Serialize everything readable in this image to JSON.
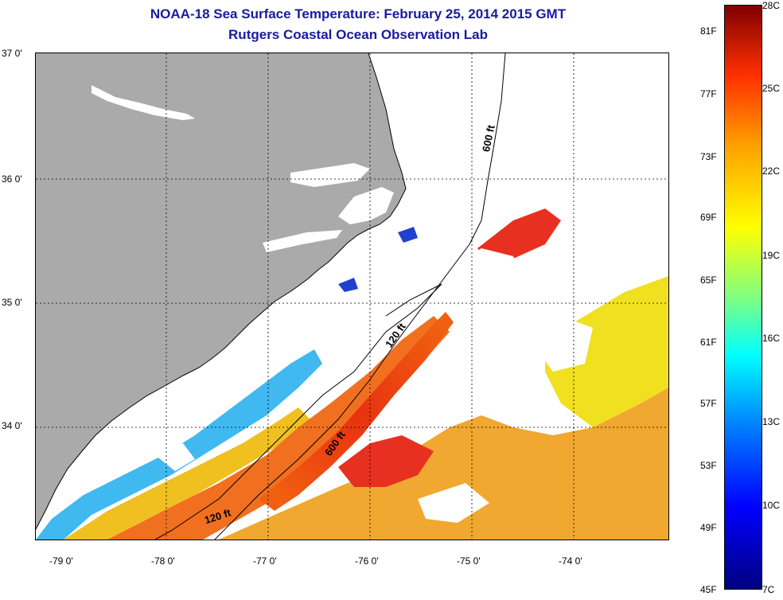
{
  "title": {
    "line1": "NOAA-18 Sea Surface Temperature:  February 25, 2014 2015 GMT",
    "line2": "Rutgers Coastal Ocean Observation Lab"
  },
  "map": {
    "lat_labels": [
      "37 0'",
      "36 0'",
      "35 0'",
      "34 0'"
    ],
    "lon_labels": [
      "-79 0'",
      "-78 0'",
      "-77 0'",
      "-76 0'",
      "-75 0'",
      "-74 0'"
    ],
    "contour_labels": [
      "600 ft",
      "120 ft",
      "600 ft",
      "120 ft"
    ],
    "colors": {
      "land": "#aaaaaa",
      "cloud": "#ffffff",
      "grid": "#000000"
    }
  },
  "colorbar": {
    "fahrenheit_labels": [
      "81F",
      "77F",
      "73F",
      "69F",
      "65F",
      "61F",
      "57F",
      "53F",
      "49F",
      "45F"
    ],
    "celsius_labels": [
      "28C",
      "25C",
      "22C",
      "19C",
      "16C",
      "13C",
      "10C",
      "7C"
    ],
    "range_f": [
      45,
      82
    ],
    "range_c": [
      7,
      28
    ]
  }
}
